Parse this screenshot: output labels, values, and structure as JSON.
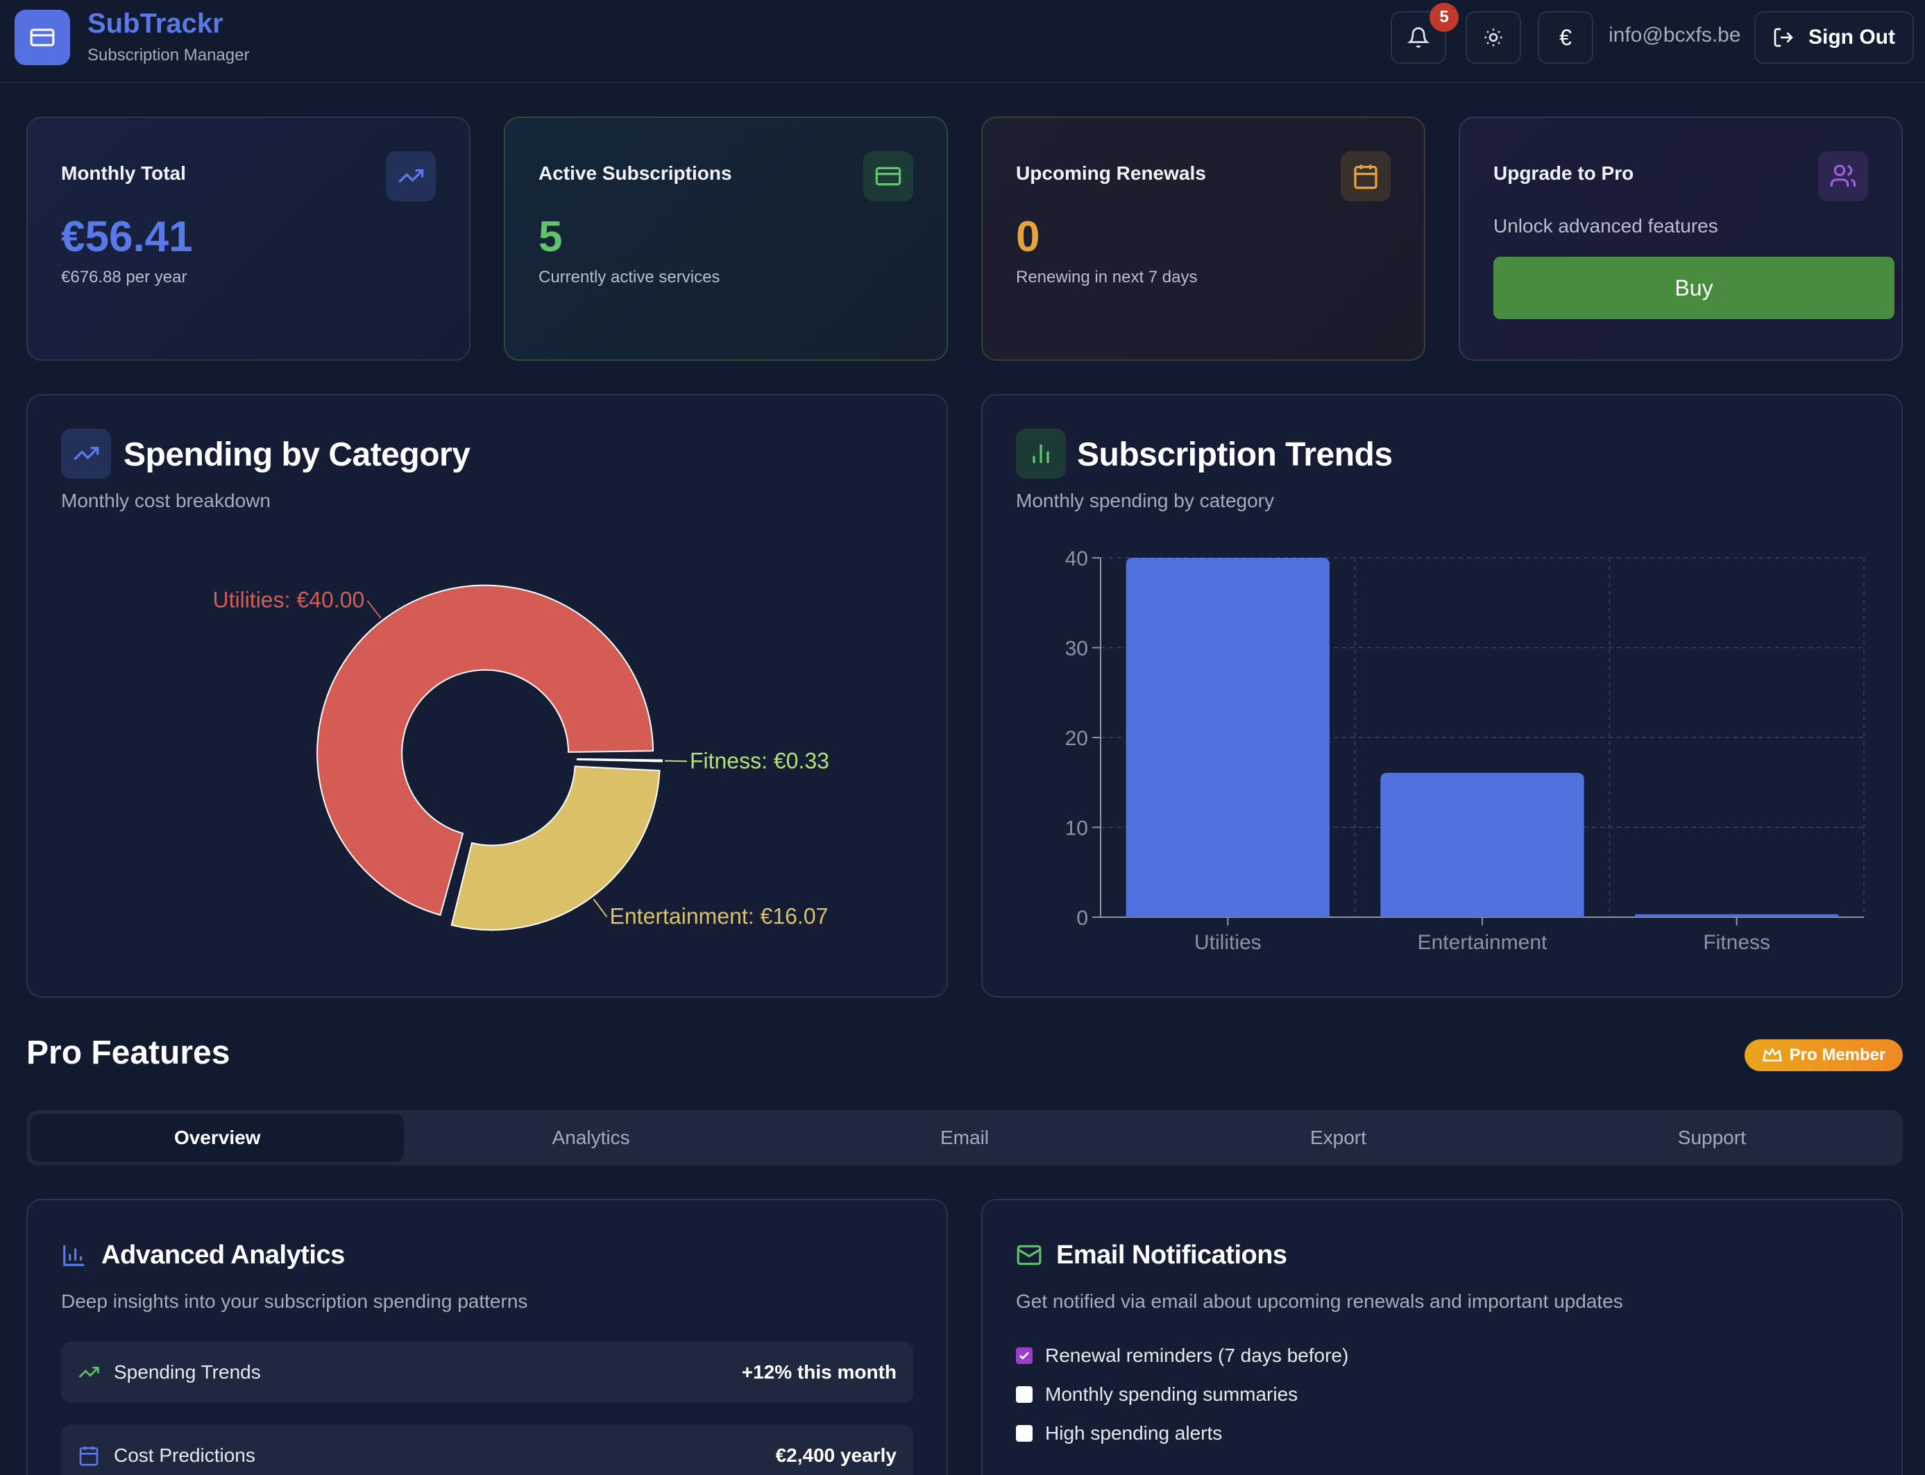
{
  "header": {
    "app_name": "SubTrackr",
    "app_subtitle": "Subscription Manager",
    "notification_count": "5",
    "currency_symbol": "€",
    "user_email": "info@bcxfs.be",
    "sign_out_label": "Sign Out"
  },
  "stats": {
    "monthly": {
      "title": "Monthly Total",
      "value": "€56.41",
      "sub": "€676.88 per year",
      "icon": "trending-up-icon"
    },
    "active": {
      "title": "Active Subscriptions",
      "value": "5",
      "sub": "Currently active services",
      "icon": "credit-card-icon"
    },
    "renewals": {
      "title": "Upcoming Renewals",
      "value": "0",
      "sub": "Renewing in next 7 days",
      "icon": "calendar-icon"
    },
    "upgrade": {
      "title": "Upgrade to Pro",
      "sub": "Unlock advanced features",
      "buy_label": "Buy",
      "icon": "users-icon"
    }
  },
  "spending_panel": {
    "title": "Spending by Category",
    "subtitle": "Monthly cost breakdown"
  },
  "trends_panel": {
    "title": "Subscription Trends",
    "subtitle": "Monthly spending by category"
  },
  "chart_data": [
    {
      "type": "pie",
      "categories": [
        "Utilities",
        "Entertainment",
        "Fitness"
      ],
      "values": [
        40.0,
        16.07,
        0.33
      ],
      "labels": [
        "Utilities: €40.00",
        "Entertainment: €16.07",
        "Fitness: €0.33"
      ],
      "colors": [
        "#d45c55",
        "#dcc068",
        "#b5e07a"
      ],
      "donut": true
    },
    {
      "type": "bar",
      "categories": [
        "Utilities",
        "Entertainment",
        "Fitness"
      ],
      "values": [
        40.0,
        16.07,
        0.33
      ],
      "ylim": [
        0,
        40
      ],
      "yticks": [
        "0",
        "10",
        "20",
        "30",
        "40"
      ],
      "grid": true,
      "color": "#5072de"
    }
  ],
  "pro": {
    "section_title": "Pro Features",
    "badge_label": "Pro Member",
    "tabs": [
      "Overview",
      "Analytics",
      "Email",
      "Export",
      "Support"
    ],
    "active_tab": "Overview"
  },
  "analytics_card": {
    "title": "Advanced Analytics",
    "subtitle": "Deep insights into your subscription spending patterns",
    "rows": [
      {
        "label": "Spending Trends",
        "value": "+12% this month",
        "icon": "trending-up-icon"
      },
      {
        "label": "Cost Predictions",
        "value": "€2,400 yearly",
        "icon": "calendar-icon"
      }
    ]
  },
  "email_card": {
    "title": "Email Notifications",
    "subtitle": "Get notified via email about upcoming renewals and important updates",
    "options": [
      {
        "label": "Renewal reminders (7 days before)",
        "checked": true
      },
      {
        "label": "Monthly spending summaries",
        "checked": false
      },
      {
        "label": "High spending alerts",
        "checked": false
      }
    ]
  },
  "colors": {
    "accent_blue": "#5a79e8",
    "green": "#5fc46a",
    "orange": "#e6a33a",
    "purple": "#9b5ee0",
    "buy_green": "#4a8c3f"
  }
}
